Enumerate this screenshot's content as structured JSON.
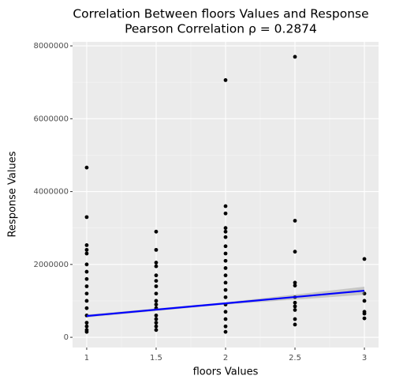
{
  "chart_data": {
    "type": "scatter",
    "title": "Correlation Between floors Values and Response",
    "subtitle": "Pearson Correlation ρ = 0.2874",
    "x_label": "floors Values",
    "y_label": "Response Values",
    "xlim": [
      0.898,
      3.102
    ],
    "ylim": [
      -280000,
      8110000
    ],
    "xticks": [
      1,
      1.5,
      2,
      2.5,
      3
    ],
    "yticks": [
      0,
      2000000,
      4000000,
      6000000,
      8000000
    ],
    "grid": true,
    "minor_grid": true,
    "points": {
      "color": "#000000",
      "x": [
        1,
        1,
        1,
        1,
        1,
        1,
        1,
        1,
        1,
        1,
        1,
        1,
        1,
        1,
        1,
        1,
        1,
        1.5,
        1.5,
        1.5,
        1.5,
        1.5,
        1.5,
        1.5,
        1.5,
        1.5,
        1.5,
        1.5,
        1.5,
        1.5,
        1.5,
        1.5,
        1.5,
        2,
        2,
        2,
        2,
        2,
        2,
        2,
        2,
        2,
        2,
        2,
        2,
        2,
        2,
        2,
        2,
        2,
        2,
        2,
        2.5,
        2.5,
        2.5,
        2.5,
        2.5,
        2.5,
        2.5,
        2.5,
        2.5,
        2.5,
        2.5,
        3,
        3,
        3,
        3,
        3,
        3
      ],
      "y": [
        4660000,
        3300000,
        2530000,
        2400000,
        2300000,
        2000000,
        1800000,
        1600000,
        1400000,
        1200000,
        1000000,
        800000,
        600000,
        400000,
        300000,
        200000,
        150000,
        2900000,
        2400000,
        2050000,
        1950000,
        1700000,
        1550000,
        1400000,
        1200000,
        1000000,
        900000,
        800000,
        600000,
        500000,
        400000,
        300000,
        200000,
        7060000,
        3600000,
        3400000,
        3000000,
        2900000,
        2750000,
        2500000,
        2300000,
        2100000,
        1900000,
        1700000,
        1500000,
        1300000,
        1100000,
        900000,
        700000,
        500000,
        300000,
        150000,
        7700000,
        3200000,
        2350000,
        1500000,
        1420000,
        1100000,
        950000,
        850000,
        750000,
        500000,
        350000,
        2150000,
        1200000,
        1000000,
        700000,
        650000,
        520000
      ]
    },
    "ribbon": {
      "color": "#999999",
      "x": [
        1,
        2,
        3
      ],
      "lower": [
        545000,
        900000,
        1170000
      ],
      "upper": [
        625000,
        960000,
        1390000
      ]
    },
    "fit": {
      "color": "#0000ff",
      "x": [
        1,
        3
      ],
      "y": [
        585000,
        1280000
      ]
    }
  }
}
